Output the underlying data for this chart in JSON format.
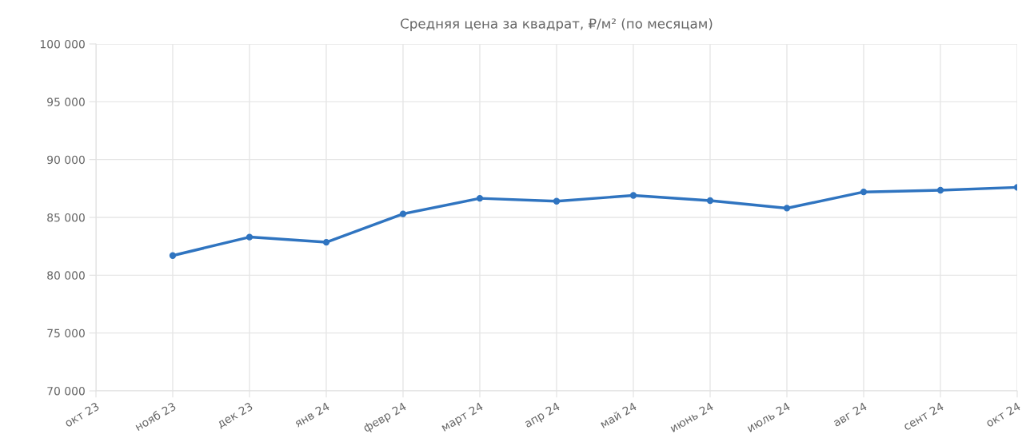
{
  "chart_data": {
    "type": "line",
    "title": "Средняя цена за квадрат, ₽/м² (по месяцам)",
    "categories": [
      "окт 23",
      "нояб 23",
      "дек 23",
      "янв 24",
      "февр 24",
      "март 24",
      "апр 24",
      "май 24",
      "июнь 24",
      "июль 24",
      "авг 24",
      "сент 24",
      "окт 24"
    ],
    "series": [
      {
        "color": "#2f74c0",
        "values": [
          null,
          81700,
          83300,
          82850,
          85300,
          86650,
          86400,
          86900,
          86450,
          85800,
          87200,
          87350,
          87600
        ]
      }
    ],
    "ylim": [
      70000,
      100000
    ],
    "yticks": [
      {
        "value": 70000,
        "label": "70 000"
      },
      {
        "value": 75000,
        "label": "75 000"
      },
      {
        "value": 80000,
        "label": "80 000"
      },
      {
        "value": 85000,
        "label": "85 000"
      },
      {
        "value": 90000,
        "label": "90 000"
      },
      {
        "value": 95000,
        "label": "95 000"
      },
      {
        "value": 100000,
        "label": "100 000"
      }
    ],
    "grid": true,
    "marker": "circle",
    "line_style": "solid"
  }
}
